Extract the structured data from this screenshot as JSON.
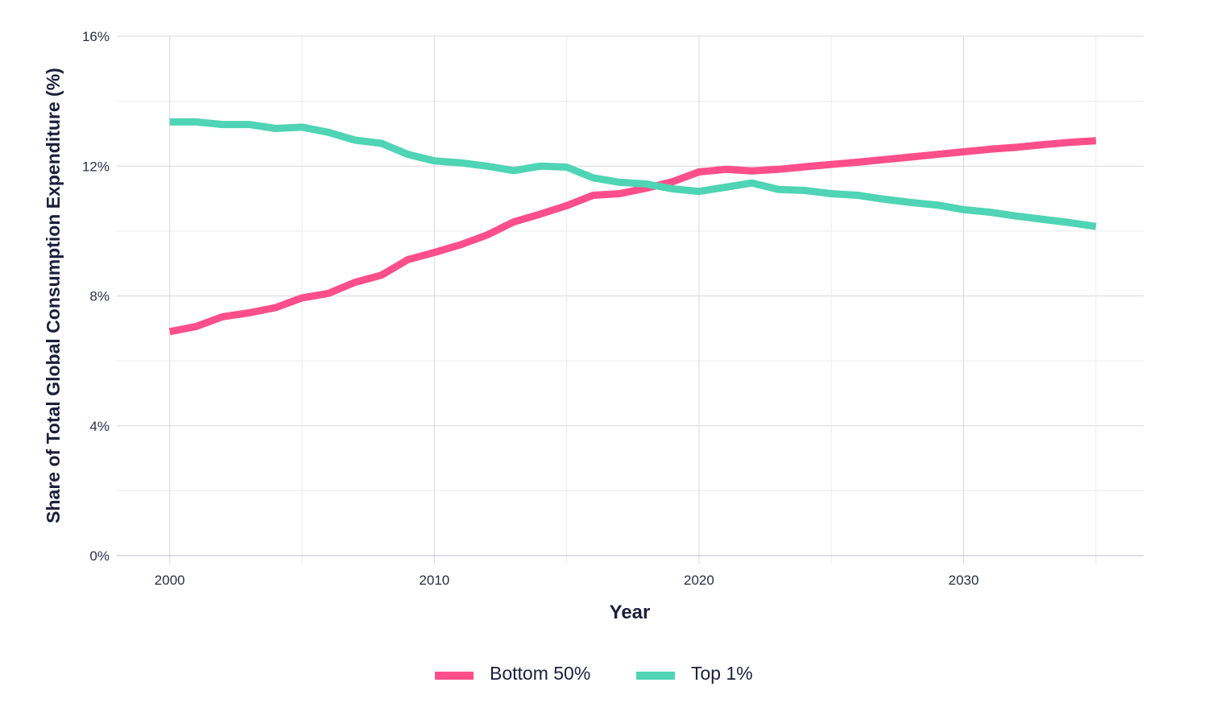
{
  "chart_data": {
    "type": "line",
    "title": "",
    "xlabel": "Year",
    "ylabel": "Share of Total Global Consumption Expenditure (%)",
    "xlim": [
      1998,
      2036.8
    ],
    "ylim": [
      0,
      16
    ],
    "x_ticks": [
      2000,
      2010,
      2020,
      2030
    ],
    "x_tick_labels": [
      "2000",
      "2010",
      "2020",
      "2030"
    ],
    "y_ticks": [
      0,
      4,
      8,
      12,
      16
    ],
    "y_tick_labels": [
      "0%",
      "4%",
      "8%",
      "12%",
      "16%"
    ],
    "grid": true,
    "legend_position": "bottom-center",
    "x": [
      2000,
      2001,
      2002,
      2003,
      2004,
      2005,
      2006,
      2007,
      2008,
      2009,
      2010,
      2011,
      2012,
      2013,
      2014,
      2015,
      2016,
      2017,
      2018,
      2019,
      2020,
      2021,
      2022,
      2023,
      2024,
      2025,
      2026,
      2027,
      2028,
      2029,
      2030,
      2031,
      2032,
      2033,
      2034,
      2035
    ],
    "series": [
      {
        "name": "Bottom 50%",
        "color": "#ff4f8b",
        "values": [
          6.9,
          7.06,
          7.36,
          7.48,
          7.64,
          7.94,
          8.08,
          8.42,
          8.64,
          9.12,
          9.34,
          9.58,
          9.88,
          10.28,
          10.52,
          10.78,
          11.1,
          11.15,
          11.32,
          11.52,
          11.82,
          11.9,
          11.85,
          11.9,
          11.98,
          12.05,
          12.12,
          12.2,
          12.28,
          12.36,
          12.44,
          12.52,
          12.58,
          12.66,
          12.73,
          12.78
        ]
      },
      {
        "name": "Top 1%",
        "color": "#4fd4b5",
        "values": [
          13.36,
          13.36,
          13.28,
          13.28,
          13.16,
          13.2,
          13.04,
          12.8,
          12.7,
          12.36,
          12.16,
          12.1,
          12.0,
          11.86,
          12.0,
          11.97,
          11.64,
          11.5,
          11.45,
          11.3,
          11.22,
          11.35,
          11.48,
          11.28,
          11.25,
          11.15,
          11.1,
          10.98,
          10.88,
          10.8,
          10.66,
          10.58,
          10.46,
          10.36,
          10.26,
          10.14
        ]
      }
    ]
  }
}
